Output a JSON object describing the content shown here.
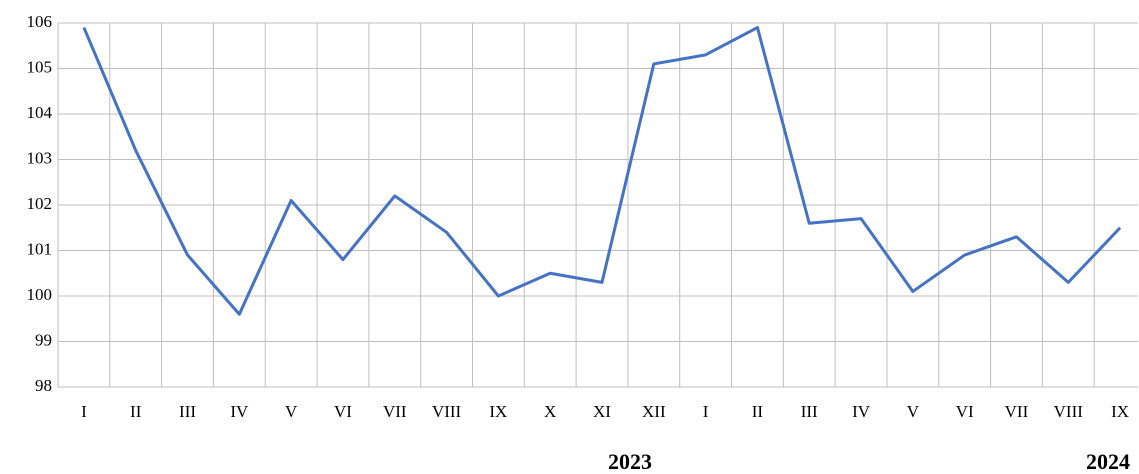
{
  "chart_data": {
    "type": "line",
    "categories": [
      "I",
      "II",
      "III",
      "IV",
      "V",
      "VI",
      "VII",
      "VIII",
      "IX",
      "X",
      "XI",
      "XII",
      "I",
      "II",
      "III",
      "IV",
      "V",
      "VI",
      "VII",
      "VIII",
      "IX"
    ],
    "series": [
      {
        "color": "#4472c4",
        "values": [
          105.9,
          103.2,
          100.9,
          99.6,
          102.1,
          100.8,
          102.2,
          101.4,
          100.0,
          100.5,
          100.3,
          105.1,
          105.3,
          105.9,
          101.6,
          101.7,
          100.1,
          100.9,
          101.3,
          100.3,
          101.5
        ]
      }
    ],
    "ylim": [
      98,
      106
    ],
    "yticks": [
      98,
      99,
      100,
      101,
      102,
      103,
      104,
      105,
      106
    ],
    "grid": true,
    "groups": [
      "2023",
      "2024"
    ]
  }
}
